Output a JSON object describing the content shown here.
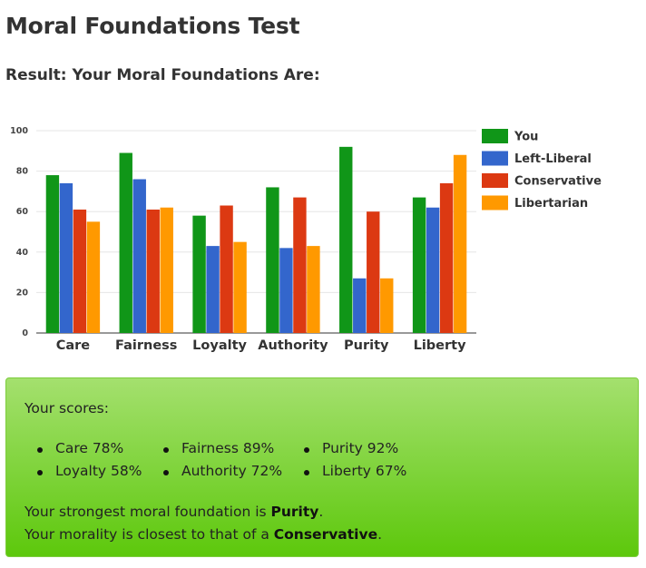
{
  "title": "Moral Foundations Test",
  "result_heading": "Result: Your Moral Foundations Are:",
  "chart_data": {
    "type": "bar",
    "categories": [
      "Care",
      "Fairness",
      "Loyalty",
      "Authority",
      "Purity",
      "Liberty"
    ],
    "series": [
      {
        "name": "You",
        "color": "#109618",
        "values": [
          78,
          89,
          58,
          72,
          92,
          67
        ]
      },
      {
        "name": "Left-Liberal",
        "color": "#3366cc",
        "values": [
          74,
          76,
          43,
          42,
          27,
          62
        ]
      },
      {
        "name": "Conservative",
        "color": "#dc3912",
        "values": [
          61,
          61,
          63,
          67,
          60,
          74
        ]
      },
      {
        "name": "Libertarian",
        "color": "#ff9900",
        "values": [
          55,
          62,
          45,
          43,
          27,
          88
        ]
      }
    ],
    "ylim": [
      0,
      100
    ],
    "yticks": [
      0,
      20,
      40,
      60,
      80,
      100
    ],
    "grid": true,
    "legend": "right"
  },
  "scores": {
    "intro": "Your scores:",
    "items": [
      "Care 78%",
      "Fairness 89%",
      "Purity 92%",
      "Loyalty 58%",
      "Authority 72%",
      "Liberty 67%"
    ],
    "strongest_prefix": "Your strongest moral foundation is ",
    "strongest_value": "Purity",
    "strongest_suffix": ".",
    "closest_prefix": "Your morality is closest to that of a ",
    "closest_value": "Conservative",
    "closest_suffix": "."
  }
}
